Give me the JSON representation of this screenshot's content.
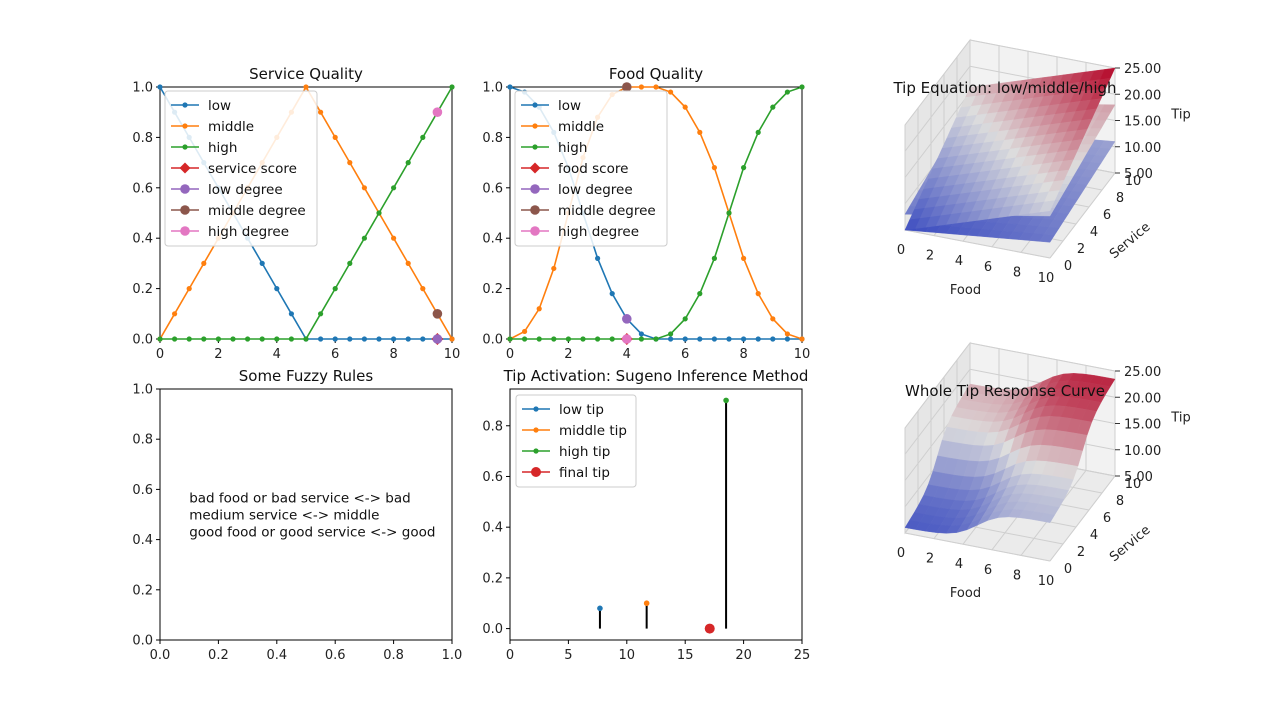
{
  "colors": {
    "low": "#1f77b4",
    "middle": "#ff7f0e",
    "high": "#2ca02c",
    "score": "#d62728",
    "low_degree": "#9467bd",
    "middle_degree": "#8c564b",
    "high_degree": "#e377c2",
    "stem": "#000000",
    "axis": "#000000"
  },
  "chart_data": [
    {
      "type": "line",
      "title": "Service Quality",
      "xlim": [
        0,
        10
      ],
      "ylim": [
        0,
        1
      ],
      "xticks": [
        "0",
        "2",
        "4",
        "6",
        "8",
        "10"
      ],
      "yticks": [
        "0.0",
        "0.2",
        "0.4",
        "0.6",
        "0.8",
        "1.0"
      ],
      "x": [
        0,
        0.5,
        1,
        1.5,
        2,
        2.5,
        3,
        3.5,
        4,
        4.5,
        5,
        5.5,
        6,
        6.5,
        7,
        7.5,
        8,
        8.5,
        9,
        9.5,
        10
      ],
      "series": [
        {
          "name": "low",
          "values": [
            1.0,
            0.9,
            0.8,
            0.7,
            0.6,
            0.5,
            0.4,
            0.3,
            0.2,
            0.1,
            0.0,
            0,
            0,
            0,
            0,
            0,
            0,
            0,
            0,
            0,
            0
          ]
        },
        {
          "name": "middle",
          "values": [
            0.0,
            0.1,
            0.2,
            0.3,
            0.4,
            0.5,
            0.6,
            0.7,
            0.8,
            0.9,
            1.0,
            0.9,
            0.8,
            0.7,
            0.6,
            0.5,
            0.4,
            0.3,
            0.2,
            0.1,
            0.0
          ]
        },
        {
          "name": "high",
          "values": [
            0,
            0,
            0,
            0,
            0,
            0,
            0,
            0,
            0,
            0,
            0.0,
            0.1,
            0.2,
            0.3,
            0.4,
            0.5,
            0.6,
            0.7,
            0.8,
            0.9,
            1.0
          ]
        }
      ],
      "markers": [
        {
          "name": "service score",
          "x": 9.5,
          "y": 0.0
        },
        {
          "name": "low degree",
          "x": 9.5,
          "y": 0.0
        },
        {
          "name": "middle degree",
          "x": 9.5,
          "y": 0.1
        },
        {
          "name": "high degree",
          "x": 9.5,
          "y": 0.9
        }
      ],
      "legend": "upper-left"
    },
    {
      "type": "line",
      "title": "Food Quality",
      "xlim": [
        0,
        10
      ],
      "ylim": [
        0,
        1
      ],
      "xticks": [
        "0",
        "2",
        "4",
        "6",
        "8",
        "10"
      ],
      "yticks": [
        "0.0",
        "0.2",
        "0.4",
        "0.6",
        "0.8",
        "1.0"
      ],
      "x": [
        0,
        0.5,
        1,
        1.5,
        2,
        2.5,
        3,
        3.5,
        4,
        4.5,
        5,
        5.5,
        6,
        6.5,
        7,
        7.5,
        8,
        8.5,
        9,
        9.5,
        10
      ],
      "series": [
        {
          "name": "low",
          "values": [
            1.0,
            0.98,
            0.92,
            0.82,
            0.68,
            0.5,
            0.32,
            0.18,
            0.08,
            0.02,
            0.0,
            0,
            0,
            0,
            0,
            0,
            0,
            0,
            0,
            0,
            0
          ]
        },
        {
          "name": "middle",
          "values": [
            0.0,
            0.03,
            0.12,
            0.28,
            0.5,
            0.72,
            0.88,
            0.97,
            1.0,
            1.0,
            1.0,
            0.98,
            0.92,
            0.82,
            0.68,
            0.5,
            0.32,
            0.18,
            0.08,
            0.02,
            0.0
          ]
        },
        {
          "name": "high",
          "values": [
            0,
            0,
            0,
            0,
            0,
            0,
            0,
            0,
            0,
            0,
            0.0,
            0.02,
            0.08,
            0.18,
            0.32,
            0.5,
            0.68,
            0.82,
            0.92,
            0.98,
            1.0
          ]
        }
      ],
      "markers": [
        {
          "name": "food score",
          "x": 4.0,
          "y": 0.0
        },
        {
          "name": "low degree",
          "x": 4.0,
          "y": 0.08
        },
        {
          "name": "middle degree",
          "x": 4.0,
          "y": 1.0
        },
        {
          "name": "high degree",
          "x": 4.0,
          "y": 0.0
        }
      ],
      "legend": "upper-left"
    },
    {
      "type": "text",
      "title": "Some Fuzzy Rules",
      "xlim": [
        0,
        1
      ],
      "ylim": [
        0,
        1
      ],
      "xticks": [
        "0.0",
        "0.2",
        "0.4",
        "0.6",
        "0.8",
        "1.0"
      ],
      "yticks": [
        "0.0",
        "0.2",
        "0.4",
        "0.6",
        "0.8",
        "1.0"
      ],
      "text_at": {
        "x": 0.1,
        "y": 0.5
      },
      "lines": [
        "bad food or bad service <-> bad",
        "medium service <-> middle",
        "good food or good service <-> good"
      ]
    },
    {
      "type": "scatter",
      "title": "Tip Activation: Sugeno Inference Method",
      "xlim": [
        0,
        25
      ],
      "ylim": [
        -0.045,
        0.945
      ],
      "xticks": [
        "0",
        "5",
        "10",
        "15",
        "20",
        "25"
      ],
      "yticks": [
        "0.0",
        "0.2",
        "0.4",
        "0.6",
        "0.8"
      ],
      "series": [
        {
          "name": "low tip",
          "x": 7.7,
          "y": 0.08
        },
        {
          "name": "middle tip",
          "x": 11.7,
          "y": 0.1
        },
        {
          "name": "high tip",
          "x": 18.5,
          "y": 0.9
        }
      ],
      "final": {
        "name": "final tip",
        "x": 17.1,
        "y": 0.0
      },
      "legend": "upper-left"
    },
    {
      "type": "surface",
      "title": "Tip Equation: low/middle/high",
      "x": {
        "label": "Food",
        "ticks": [
          "0",
          "2",
          "4",
          "6",
          "8",
          "10"
        ]
      },
      "y": {
        "label": "Service",
        "ticks": [
          "0",
          "2",
          "4",
          "6",
          "8",
          "10"
        ]
      },
      "z": {
        "label": "Tip",
        "range": [
          5,
          25
        ],
        "ticks": [
          "5.00",
          "10.00",
          "15.00",
          "20.00",
          "25.00"
        ]
      },
      "colormap": "coolwarm",
      "planes": [
        "low",
        "middle",
        "high"
      ]
    },
    {
      "type": "surface",
      "title": "Whole Tip Response Curve",
      "x": {
        "label": "Food",
        "ticks": [
          "0",
          "2",
          "4",
          "6",
          "8",
          "10"
        ]
      },
      "y": {
        "label": "Service",
        "ticks": [
          "0",
          "2",
          "4",
          "6",
          "8",
          "10"
        ]
      },
      "z": {
        "label": "Tip",
        "range": [
          5,
          25
        ],
        "ticks": [
          "5.00",
          "10.00",
          "15.00",
          "20.00",
          "25.00"
        ]
      },
      "colormap": "coolwarm"
    }
  ]
}
